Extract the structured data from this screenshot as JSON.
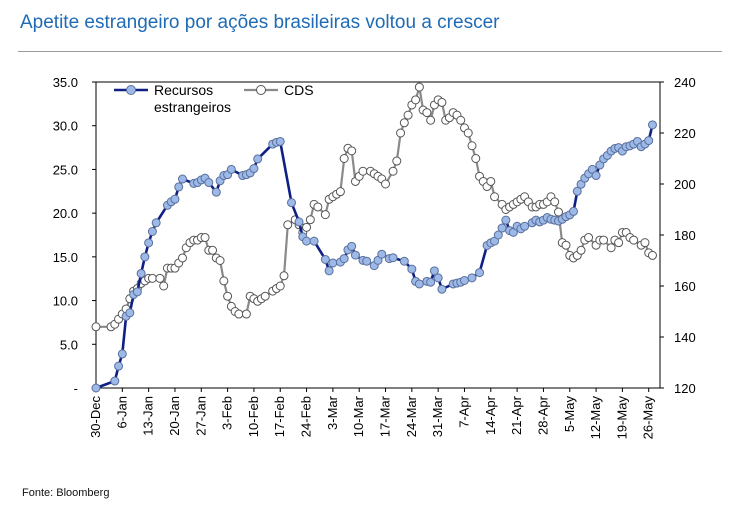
{
  "header": {
    "title": "Apetite estrangeiro por ações brasileiras voltou a crescer"
  },
  "footer": {
    "source": "Fonte: Bloomberg"
  },
  "colors": {
    "title": "#1f6bb5",
    "series_recursos_line": "#0e1f86",
    "series_recursos_marker": "#9cb9e8",
    "series_cds_line": "#8a8a8a",
    "series_cds_marker": "#ffffff"
  },
  "chart_data": {
    "type": "line",
    "title": "Apetite estrangeiro por ações brasileiras voltou a crescer",
    "xlabel": "",
    "ylabel_left": "",
    "ylabel_right": "",
    "grid": false,
    "legend_position": "top-left",
    "x_range": [
      0,
      150
    ],
    "x_ticks": [
      {
        "label": "30-Dec",
        "x": 0
      },
      {
        "label": "6-Jan",
        "x": 7
      },
      {
        "label": "13-Jan",
        "x": 14
      },
      {
        "label": "20-Jan",
        "x": 21
      },
      {
        "label": "27-Jan",
        "x": 28
      },
      {
        "label": "3-Feb",
        "x": 35
      },
      {
        "label": "10-Feb",
        "x": 42
      },
      {
        "label": "17-Feb",
        "x": 49
      },
      {
        "label": "24-Feb",
        "x": 56
      },
      {
        "label": "3-Mar",
        "x": 63
      },
      {
        "label": "10-Mar",
        "x": 70
      },
      {
        "label": "17-Mar",
        "x": 77
      },
      {
        "label": "24-Mar",
        "x": 84
      },
      {
        "label": "31-Mar",
        "x": 91
      },
      {
        "label": "7-Apr",
        "x": 98
      },
      {
        "label": "14-Apr",
        "x": 105
      },
      {
        "label": "21-Apr",
        "x": 112
      },
      {
        "label": "28-Apr",
        "x": 119
      },
      {
        "label": "5-May",
        "x": 126
      },
      {
        "label": "12-May",
        "x": 133
      },
      {
        "label": "19-May",
        "x": 140
      },
      {
        "label": "26-May",
        "x": 147
      }
    ],
    "y_left": {
      "range": [
        0,
        35
      ],
      "ticks": [
        {
          "label": "-",
          "value": 0
        },
        {
          "label": "5.0",
          "value": 5
        },
        {
          "label": "10.0",
          "value": 10
        },
        {
          "label": "15.0",
          "value": 15
        },
        {
          "label": "20.0",
          "value": 20
        },
        {
          "label": "25.0",
          "value": 25
        },
        {
          "label": "30.0",
          "value": 30
        },
        {
          "label": "35.0",
          "value": 35
        }
      ]
    },
    "y_right": {
      "range": [
        120,
        240
      ],
      "ticks": [
        {
          "label": "120",
          "value": 120
        },
        {
          "label": "140",
          "value": 140
        },
        {
          "label": "160",
          "value": 160
        },
        {
          "label": "180",
          "value": 180
        },
        {
          "label": "200",
          "value": 200
        },
        {
          "label": "220",
          "value": 220
        },
        {
          "label": "240",
          "value": 240
        }
      ]
    },
    "series": [
      {
        "name": "Recursos estrangeiros",
        "name_lines": [
          "Recursos",
          "estrangeiros"
        ],
        "axis": "left",
        "points": [
          [
            0,
            0
          ],
          [
            5,
            0.8
          ],
          [
            6,
            2.5
          ],
          [
            7,
            3.9
          ],
          [
            8,
            8.2
          ],
          [
            9,
            8.6
          ],
          [
            10,
            10.7
          ],
          [
            11,
            11
          ],
          [
            12,
            13.1
          ],
          [
            13,
            15
          ],
          [
            14,
            16.6
          ],
          [
            15,
            17.9
          ],
          [
            16,
            18.9
          ],
          [
            19,
            20.9
          ],
          [
            20,
            21.3
          ],
          [
            21,
            21.6
          ],
          [
            22,
            23
          ],
          [
            23,
            23.9
          ],
          [
            26,
            23.4
          ],
          [
            27,
            23.5
          ],
          [
            28,
            23.8
          ],
          [
            29,
            24
          ],
          [
            30,
            23.5
          ],
          [
            32,
            22.4
          ],
          [
            33,
            23.7
          ],
          [
            34,
            24.3
          ],
          [
            35,
            24.4
          ],
          [
            36,
            25
          ],
          [
            39,
            24.3
          ],
          [
            40,
            24.4
          ],
          [
            41,
            24.6
          ],
          [
            42,
            25.1
          ],
          [
            43,
            26.2
          ],
          [
            47,
            27.9
          ],
          [
            48,
            28.1
          ],
          [
            49,
            28.2
          ],
          [
            52,
            21.2
          ],
          [
            54,
            19
          ],
          [
            55,
            17.3
          ],
          [
            56,
            16.8
          ],
          [
            58,
            16.8
          ],
          [
            61,
            14.7
          ],
          [
            62,
            13.4
          ],
          [
            63,
            14.3
          ],
          [
            65,
            14.4
          ],
          [
            66,
            14.8
          ],
          [
            67,
            15.8
          ],
          [
            68,
            16.2
          ],
          [
            69,
            15.2
          ],
          [
            71,
            14.6
          ],
          [
            72,
            14.5
          ],
          [
            74,
            14
          ],
          [
            75,
            14.6
          ],
          [
            76,
            15.3
          ],
          [
            78,
            14.8
          ],
          [
            79,
            14.9
          ],
          [
            82,
            14.5
          ],
          [
            84,
            13.6
          ],
          [
            85,
            12.2
          ],
          [
            86,
            11.9
          ],
          [
            88,
            12.2
          ],
          [
            89,
            12.1
          ],
          [
            90,
            13.4
          ],
          [
            91,
            12.6
          ],
          [
            92,
            11.3
          ],
          [
            95,
            11.9
          ],
          [
            96,
            12
          ],
          [
            97,
            12.1
          ],
          [
            98,
            12.3
          ],
          [
            100,
            12.6
          ],
          [
            102,
            13.2
          ],
          [
            104,
            16.3
          ],
          [
            105,
            16.6
          ],
          [
            106,
            16.8
          ],
          [
            107,
            17.5
          ],
          [
            108,
            18.3
          ],
          [
            109,
            19.2
          ],
          [
            110,
            18
          ],
          [
            111,
            17.8
          ],
          [
            112,
            18.5
          ],
          [
            113,
            18.2
          ],
          [
            114,
            18.5
          ],
          [
            116,
            18.9
          ],
          [
            117,
            19.2
          ],
          [
            118,
            19
          ],
          [
            119,
            19.2
          ],
          [
            120,
            19.5
          ],
          [
            121,
            19.3
          ],
          [
            122,
            19.2
          ],
          [
            123,
            19.1
          ],
          [
            124,
            19.3
          ],
          [
            125,
            19.6
          ],
          [
            126,
            19.8
          ],
          [
            127,
            20.2
          ],
          [
            128,
            22.5
          ],
          [
            129,
            23.3
          ],
          [
            130,
            24
          ],
          [
            131,
            24.5
          ],
          [
            132,
            25
          ],
          [
            133,
            24.3
          ],
          [
            134,
            25.5
          ],
          [
            135,
            26.2
          ],
          [
            136,
            26.6
          ],
          [
            137,
            27.1
          ],
          [
            138,
            27.4
          ],
          [
            139,
            27.5
          ],
          [
            140,
            27.1
          ],
          [
            141,
            27.6
          ],
          [
            142,
            27.7
          ],
          [
            143,
            27.9
          ],
          [
            144,
            28.2
          ],
          [
            145,
            27.6
          ],
          [
            146,
            27.9
          ],
          [
            147,
            28.3
          ],
          [
            148,
            30.1
          ]
        ]
      },
      {
        "name": "CDS",
        "name_lines": [
          "CDS"
        ],
        "axis": "right",
        "points": [
          [
            0,
            144
          ],
          [
            4,
            144
          ],
          [
            5,
            145
          ],
          [
            6,
            147
          ],
          [
            7,
            149
          ],
          [
            8,
            151
          ],
          [
            9,
            155
          ],
          [
            10,
            158
          ],
          [
            11,
            159
          ],
          [
            12,
            161
          ],
          [
            13,
            162
          ],
          [
            14,
            163
          ],
          [
            15,
            163
          ],
          [
            17,
            163
          ],
          [
            18,
            160
          ],
          [
            19,
            167
          ],
          [
            20,
            167
          ],
          [
            21,
            167
          ],
          [
            22,
            169
          ],
          [
            23,
            171
          ],
          [
            24,
            175
          ],
          [
            25,
            177
          ],
          [
            26,
            178
          ],
          [
            27,
            178
          ],
          [
            28,
            179
          ],
          [
            29,
            179
          ],
          [
            30,
            174
          ],
          [
            31,
            174
          ],
          [
            32,
            171
          ],
          [
            33,
            170
          ],
          [
            34,
            162
          ],
          [
            35,
            156
          ],
          [
            36,
            152
          ],
          [
            37,
            150
          ],
          [
            38,
            149
          ],
          [
            40,
            149
          ],
          [
            41,
            156
          ],
          [
            42,
            155
          ],
          [
            43,
            154
          ],
          [
            44,
            155
          ],
          [
            45,
            156
          ],
          [
            47,
            158
          ],
          [
            48,
            159
          ],
          [
            49,
            160
          ],
          [
            50,
            164
          ],
          [
            51,
            184
          ],
          [
            53,
            186
          ],
          [
            54,
            184
          ],
          [
            55,
            181
          ],
          [
            56,
            183
          ],
          [
            57,
            186
          ],
          [
            58,
            192
          ],
          [
            59,
            191
          ],
          [
            61,
            188
          ],
          [
            62,
            194
          ],
          [
            63,
            195
          ],
          [
            64,
            196
          ],
          [
            65,
            197
          ],
          [
            66,
            210
          ],
          [
            67,
            214
          ],
          [
            68,
            213
          ],
          [
            69,
            201
          ],
          [
            70,
            203
          ],
          [
            71,
            205
          ],
          [
            73,
            205
          ],
          [
            74,
            204
          ],
          [
            75,
            203
          ],
          [
            76,
            202
          ],
          [
            77,
            200
          ],
          [
            79,
            205
          ],
          [
            80,
            209
          ],
          [
            81,
            220
          ],
          [
            82,
            224
          ],
          [
            83,
            227
          ],
          [
            84,
            231
          ],
          [
            85,
            233
          ],
          [
            86,
            238
          ],
          [
            87,
            229
          ],
          [
            88,
            228
          ],
          [
            89,
            225
          ],
          [
            90,
            231
          ],
          [
            91,
            233
          ],
          [
            92,
            232
          ],
          [
            93,
            225
          ],
          [
            94,
            226
          ],
          [
            95,
            228
          ],
          [
            96,
            227
          ],
          [
            97,
            225
          ],
          [
            98,
            222
          ],
          [
            99,
            220
          ],
          [
            100,
            215
          ],
          [
            101,
            210
          ],
          [
            102,
            203
          ],
          [
            103,
            201
          ],
          [
            104,
            199
          ],
          [
            105,
            201
          ],
          [
            106,
            195
          ],
          [
            108,
            192
          ],
          [
            109,
            190
          ],
          [
            110,
            191
          ],
          [
            111,
            192
          ],
          [
            112,
            193
          ],
          [
            113,
            194
          ],
          [
            114,
            195
          ],
          [
            115,
            193
          ],
          [
            116,
            191
          ],
          [
            117,
            191
          ],
          [
            118,
            192
          ],
          [
            119,
            192
          ],
          [
            120,
            193
          ],
          [
            121,
            195
          ],
          [
            122,
            193
          ],
          [
            123,
            189
          ],
          [
            124,
            177
          ],
          [
            125,
            176
          ],
          [
            126,
            172
          ],
          [
            127,
            171
          ],
          [
            128,
            172
          ],
          [
            129,
            174
          ],
          [
            130,
            178
          ],
          [
            131,
            179
          ],
          [
            133,
            176
          ],
          [
            134,
            178
          ],
          [
            135,
            178
          ],
          [
            137,
            175
          ],
          [
            138,
            178
          ],
          [
            139,
            177
          ],
          [
            140,
            181
          ],
          [
            141,
            181
          ],
          [
            142,
            179
          ],
          [
            143,
            178
          ],
          [
            145,
            176
          ],
          [
            146,
            177
          ],
          [
            147,
            173
          ],
          [
            148,
            172
          ]
        ]
      }
    ]
  }
}
